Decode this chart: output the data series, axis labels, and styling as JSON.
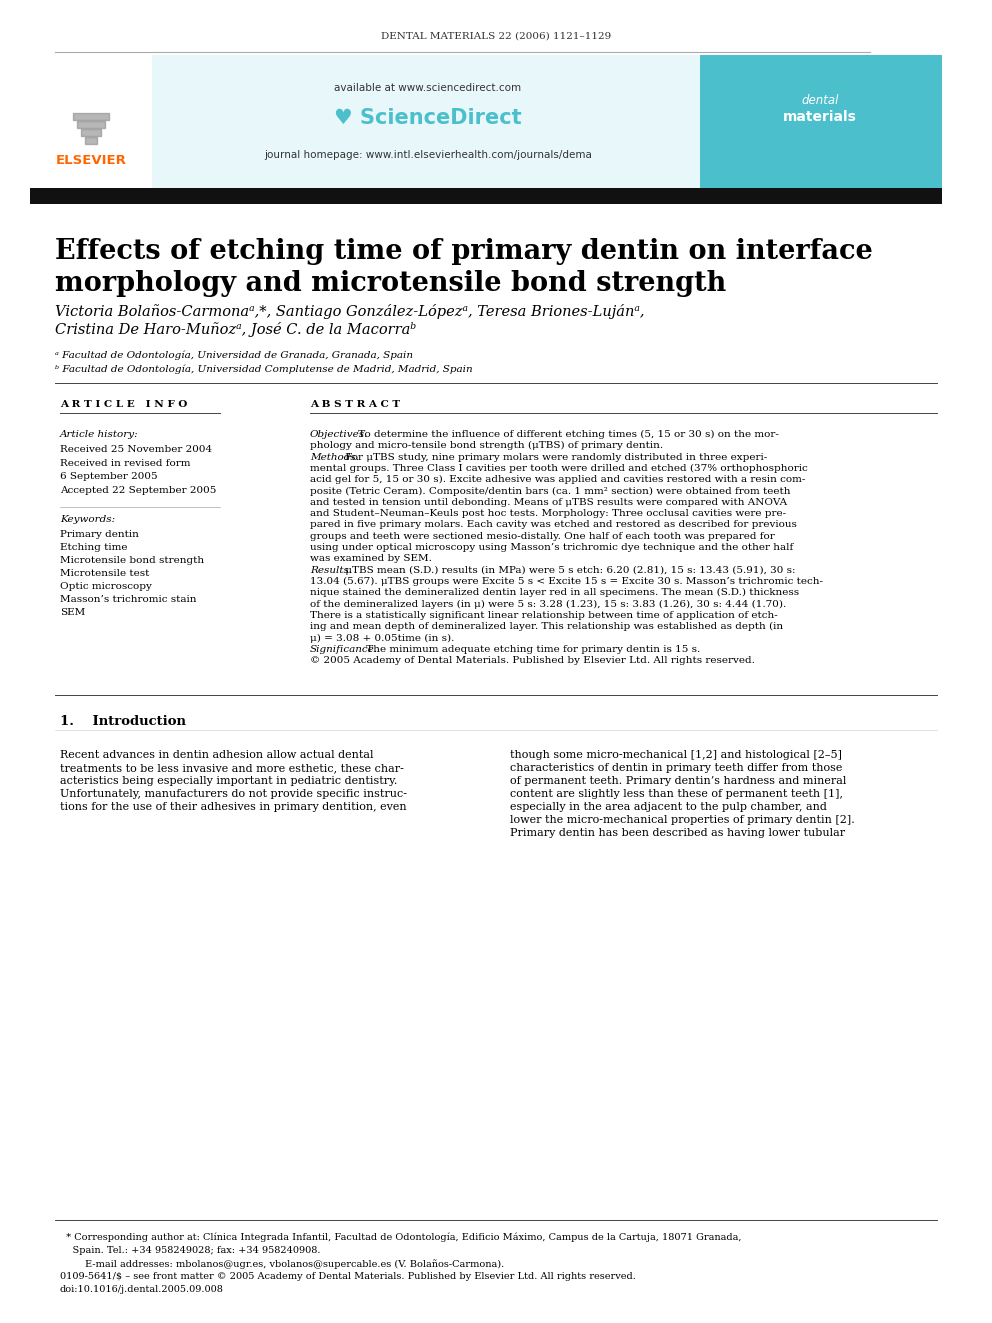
{
  "page_title": "DENTAL MATERIALS 22 (2006) 1121–1129",
  "journal_url": "available at www.sciencedirect.com",
  "journal_homepage": "journal homepage: www.intl.elsevierhealth.com/journals/dema",
  "article_title": "Effects of etching time of primary dentin on interface\nmorphology and microtensile bond strength",
  "authors_line1": "Victoria Bolaños-Carmonaᵃ,*, Santiago González-Lópezᵃ, Teresa Briones-Lujánᵃ,",
  "authors_line2": "Cristina De Haro-Muñozᵃ, José C. de la Macorraᵇ",
  "affiliation_a": "ᵃ Facultad de Odontología, Universidad de Granada, Granada, Spain",
  "affiliation_b": "ᵇ Facultad de Odontología, Universidad Complutense de Madrid, Madrid, Spain",
  "article_info_label": "A R T I C L E   I N F O",
  "abstract_label": "A B S T R A C T",
  "article_history_label": "Article history:",
  "received_1": "Received 25 November 2004",
  "received_2a": "Received in revised form",
  "received_2b": "6 September 2005",
  "accepted": "Accepted 22 September 2005",
  "keywords_label": "Keywords:",
  "keywords": [
    "Primary dentin",
    "Etching time",
    "Microtensile bond strength",
    "Microtensile test",
    "Optic microscopy",
    "Masson’s trichromic stain",
    "SEM"
  ],
  "abstract_lines": [
    [
      "Objectives.",
      " To determine the influence of different etching times (5, 15 or 30 s) on the mor-"
    ],
    [
      "",
      "phology and micro-tensile bond strength (μTBS) of primary dentin."
    ],
    [
      "Methods.",
      " For μTBS study, nine primary molars were randomly distributed in three experi-"
    ],
    [
      "",
      "mental groups. Three Class I cavities per tooth were drilled and etched (37% orthophosphoric"
    ],
    [
      "",
      "acid gel for 5, 15 or 30 s). Excite adhesive was applied and cavities restored with a resin com-"
    ],
    [
      "",
      "posite (Tetric Ceram). Composite/dentin bars (ca. 1 mm² section) were obtained from teeth"
    ],
    [
      "",
      "and tested in tension until debonding. Means of μTBS results were compared with ANOVA"
    ],
    [
      "",
      "and Student–Neuman–Keuls post hoc tests. Morphology: Three occlusal cavities were pre-"
    ],
    [
      "",
      "pared in five primary molars. Each cavity was etched and restored as described for previous"
    ],
    [
      "",
      "groups and teeth were sectioned mesio-distally. One half of each tooth was prepared for"
    ],
    [
      "",
      "using under optical microscopy using Masson’s trichromic dye technique and the other half"
    ],
    [
      "",
      "was examined by SEM."
    ],
    [
      "Results.",
      " μTBS mean (S.D.) results (in MPa) were 5 s etch: 6.20 (2.81), 15 s: 13.43 (5.91), 30 s:"
    ],
    [
      "",
      "13.04 (5.67). μTBS groups were Excite 5 s < Excite 15 s = Excite 30 s. Masson’s trichromic tech-"
    ],
    [
      "",
      "nique stained the demineralized dentin layer red in all specimens. The mean (S.D.) thickness"
    ],
    [
      "",
      "of the demineralized layers (in μ) were 5 s: 3.28 (1.23), 15 s: 3.83 (1.26), 30 s: 4.44 (1.70)."
    ],
    [
      "",
      "There is a statistically significant linear relationship between time of application of etch-"
    ],
    [
      "",
      "ing and mean depth of demineralized layer. This relationship was established as depth (in"
    ],
    [
      "",
      "μ) = 3.08 + 0.05time (in s)."
    ],
    [
      "Significance.",
      " The minimum adequate etching time for primary dentin is 15 s."
    ],
    [
      "",
      "© 2005 Academy of Dental Materials. Published by Elsevier Ltd. All rights reserved."
    ]
  ],
  "intro_label": "1.    Introduction",
  "intro_left_lines": [
    "Recent advances in dentin adhesion allow actual dental",
    "treatments to be less invasive and more esthetic, these char-",
    "acteristics being especially important in pediatric dentistry.",
    "Unfortunately, manufacturers do not provide specific instruc-",
    "tions for the use of their adhesives in primary dentition, even"
  ],
  "intro_right_lines": [
    "though some micro-mechanical [1,2] and histological [2–5]",
    "characteristics of dentin in primary teeth differ from those",
    "of permanent teeth. Primary dentin’s hardness and mineral",
    "content are slightly less than these of permanent teeth [1],",
    "especially in the area adjacent to the pulp chamber, and",
    "lower the micro-mechanical properties of primary dentin [2].",
    "Primary dentin has been described as having lower tubular"
  ],
  "footer_lines": [
    "  * Corresponding author at: Clínica Integrada Infantil, Facultad de Odontología, Edificio Máximo, Campus de la Cartuja, 18071 Granada,",
    "    Spain. Tel.: +34 958249028; fax: +34 958240908.",
    "        E-mail addresses: mbolanos@ugr.es, vbolanos@supercable.es (V. Bolaños-Carmona).",
    "0109-5641/$ – see front matter © 2005 Academy of Dental Materials. Published by Elsevier Ltd. All rights reserved.",
    "doi:10.1016/j.dental.2005.09.008"
  ],
  "elsevier_color": "#FF6600",
  "header_teal_light": "#E8F7FA",
  "header_teal_dark": "#4BBFCC",
  "black_bar_color": "#111111"
}
